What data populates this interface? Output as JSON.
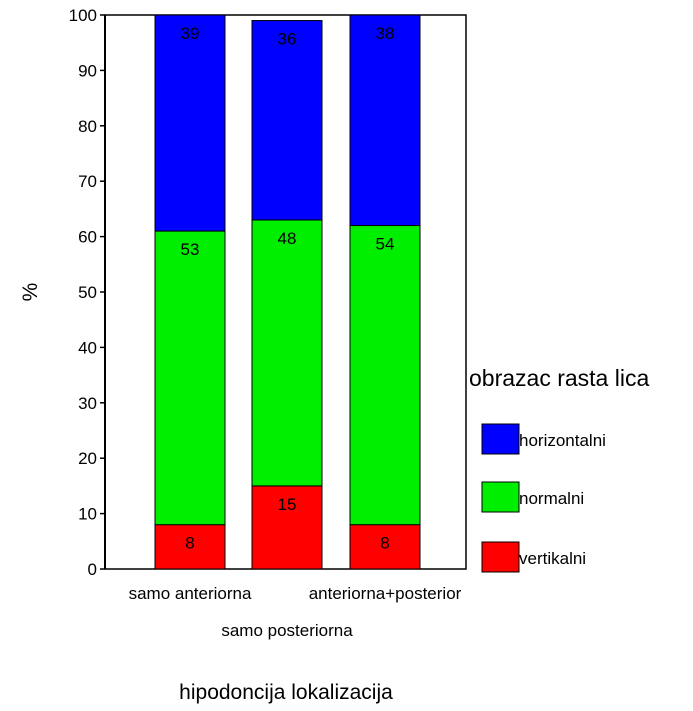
{
  "chart_data": {
    "type": "bar",
    "stacked": true,
    "title": "",
    "xlabel": "hipodoncija lokalizacija",
    "ylabel": "%",
    "ylim": [
      0,
      100
    ],
    "yticks": [
      0,
      10,
      20,
      30,
      40,
      50,
      60,
      70,
      80,
      90,
      100
    ],
    "categories": [
      "samo anteriorna",
      "samo posteriorna",
      "anteriorna+posterior"
    ],
    "series": [
      {
        "name": "vertikalni",
        "color": "#ff0000",
        "values": [
          8,
          15,
          8
        ]
      },
      {
        "name": "normalni",
        "color": "#00ee00",
        "values": [
          53,
          48,
          54
        ]
      },
      {
        "name": "horizontalni",
        "color": "#0000ff",
        "values": [
          39,
          36,
          38
        ]
      }
    ],
    "data_labels": true,
    "grid": false,
    "legend": {
      "title": "obrazac rasta lica",
      "placement": "right",
      "order": [
        "horizontalni",
        "normalni",
        "vertikalni"
      ]
    }
  }
}
